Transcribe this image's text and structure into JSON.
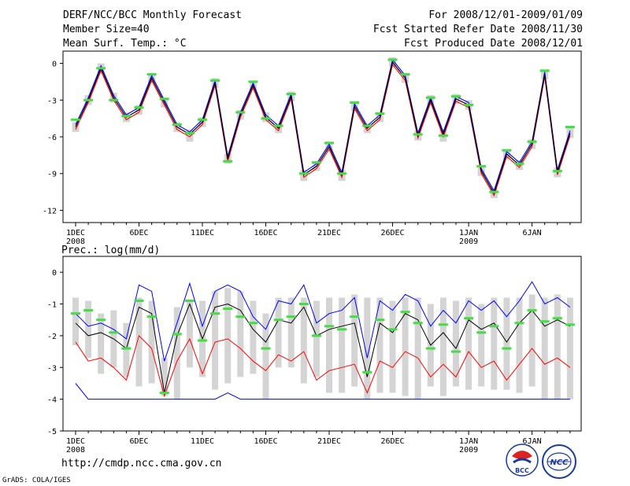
{
  "header": {
    "title": "DERF/NCC/BCC Monthly Forecast",
    "member_size": "Member Size=40",
    "variable": "Mean Surf. Temp.: °C",
    "forecast_range": "For 2008/12/01-2009/01/09",
    "started_date": "Fcst Started Refer Date 2008/11/30",
    "produced_date": "Fcst Produced Date 2008/12/01"
  },
  "footer": {
    "url": "http://cmdp.ncc.cma.gov.cn",
    "grads": "GrADS: COLA/IGES",
    "bcc_logo_text": "BCC",
    "ncc_logo_text": "NCC"
  },
  "colors": {
    "ensemble_mean": "#000000",
    "spread_upper": "#0000ff",
    "spread_lower": "#ff0000",
    "observation": "#44dd44",
    "member_range": "#d4d4d4"
  },
  "chart_data": [
    {
      "type": "line",
      "title": "Mean Surf. Temp.: °C",
      "xlabel": "",
      "ylabel": "",
      "ylim": [
        -13,
        1
      ],
      "yticks": [
        0,
        -3,
        -6,
        -9,
        -12
      ],
      "x_tick_labels": [
        "1DEC",
        "6DEC",
        "11DEC",
        "16DEC",
        "21DEC",
        "26DEC",
        "1JAN",
        "6JAN"
      ],
      "x_year_labels": [
        "2008",
        "",
        "",
        "",
        "",
        "",
        "2009",
        ""
      ],
      "x_tick_positions": [
        1,
        6,
        11,
        16,
        21,
        26,
        32,
        37
      ],
      "x": [
        1,
        2,
        3,
        4,
        5,
        6,
        7,
        8,
        9,
        10,
        11,
        12,
        13,
        14,
        15,
        16,
        17,
        18,
        19,
        20,
        21,
        22,
        23,
        24,
        25,
        26,
        27,
        28,
        29,
        30,
        31,
        32,
        33,
        34,
        35,
        36,
        37,
        38,
        39,
        40
      ],
      "series": [
        {
          "name": "ensemble mean",
          "values": [
            -5.2,
            -3.0,
            -0.4,
            -2.8,
            -4.4,
            -3.8,
            -1.2,
            -3.2,
            -5.2,
            -5.8,
            -4.8,
            -1.6,
            -7.8,
            -4.2,
            -1.8,
            -4.4,
            -5.3,
            -2.7,
            -9.1,
            -8.4,
            -6.8,
            -9.1,
            -3.5,
            -5.3,
            -4.4,
            0.1,
            -1.2,
            -5.9,
            -3.0,
            -5.8,
            -2.9,
            -3.4,
            -8.8,
            -10.6,
            -7.4,
            -8.3,
            -6.6,
            -0.9,
            -8.9,
            -5.7
          ]
        },
        {
          "name": "upper spread",
          "values": [
            -5.0,
            -2.8,
            -0.2,
            -2.6,
            -4.2,
            -3.6,
            -1.0,
            -3.0,
            -5.0,
            -5.6,
            -4.6,
            -1.4,
            -7.6,
            -4.0,
            -1.6,
            -4.2,
            -5.1,
            -2.5,
            -8.9,
            -8.2,
            -6.6,
            -8.9,
            -3.3,
            -5.1,
            -4.2,
            0.3,
            -1.0,
            -5.7,
            -2.8,
            -5.6,
            -2.7,
            -3.2,
            -8.6,
            -10.4,
            -7.2,
            -8.1,
            -6.4,
            -0.7,
            -8.7,
            -5.5
          ]
        },
        {
          "name": "lower spread",
          "values": [
            -5.4,
            -3.2,
            -0.6,
            -3.0,
            -4.6,
            -4.0,
            -1.4,
            -3.4,
            -5.4,
            -6.0,
            -5.0,
            -1.8,
            -8.0,
            -4.4,
            -2.0,
            -4.6,
            -5.5,
            -2.9,
            -9.3,
            -8.6,
            -7.0,
            -9.3,
            -3.7,
            -5.5,
            -4.6,
            -0.1,
            -1.4,
            -6.1,
            -3.2,
            -6.0,
            -3.1,
            -3.6,
            -9.0,
            -10.8,
            -7.6,
            -8.5,
            -6.8,
            -1.1,
            -9.1,
            -5.9
          ]
        },
        {
          "name": "member max",
          "values": [
            -4.8,
            -2.6,
            0.0,
            -2.4,
            -4.0,
            -3.4,
            -0.8,
            -2.8,
            -4.8,
            -5.4,
            -4.4,
            -1.2,
            -7.4,
            -3.8,
            -1.4,
            -4.0,
            -4.9,
            -2.3,
            -8.7,
            -8.0,
            -6.4,
            -8.7,
            -3.1,
            -4.9,
            -4.0,
            0.5,
            -0.8,
            -5.5,
            -2.6,
            -5.4,
            -2.5,
            -3.0,
            -8.4,
            -10.2,
            -7.0,
            -7.9,
            -6.2,
            -0.5,
            -8.5,
            -5.3
          ]
        },
        {
          "name": "member min",
          "values": [
            -5.6,
            -3.4,
            -0.8,
            -3.2,
            -4.8,
            -4.2,
            -1.6,
            -3.6,
            -5.6,
            -6.4,
            -5.2,
            -2.0,
            -8.2,
            -4.6,
            -2.2,
            -4.8,
            -5.7,
            -3.1,
            -9.6,
            -8.8,
            -7.2,
            -9.6,
            -3.9,
            -5.7,
            -4.8,
            -0.3,
            -1.6,
            -6.3,
            -3.4,
            -6.4,
            -3.3,
            -3.8,
            -9.2,
            -11.0,
            -7.8,
            -8.7,
            -7.0,
            -1.3,
            -9.3,
            -6.1
          ]
        },
        {
          "name": "observation",
          "values": [
            -4.6,
            -3.0,
            -0.4,
            -3.0,
            -4.3,
            -3.6,
            -0.9,
            -2.9,
            -5.0,
            -5.7,
            -4.6,
            -1.4,
            -8.0,
            -4.0,
            -1.5,
            -4.5,
            -5.1,
            -2.5,
            -9.0,
            -8.1,
            -6.5,
            -9.0,
            -3.2,
            -5.1,
            -4.1,
            0.3,
            -0.9,
            -5.8,
            -2.8,
            -5.9,
            -2.7,
            -3.4,
            -8.4,
            -10.5,
            -7.1,
            -8.2,
            -6.4,
            -0.6,
            -8.8,
            -5.2
          ]
        }
      ]
    },
    {
      "type": "line",
      "title": "Prec.: log(mm/d)",
      "xlabel": "",
      "ylabel": "",
      "ylim": [
        -5,
        0.5
      ],
      "yticks": [
        0,
        -1,
        -2,
        -3,
        -4,
        -5
      ],
      "x_tick_labels": [
        "1DEC",
        "6DEC",
        "11DEC",
        "16DEC",
        "21DEC",
        "26DEC",
        "1JAN",
        "6JAN"
      ],
      "x_year_labels": [
        "2008",
        "",
        "",
        "",
        "",
        "",
        "2009",
        ""
      ],
      "x_tick_positions": [
        1,
        6,
        11,
        16,
        21,
        26,
        32,
        37
      ],
      "x": [
        1,
        2,
        3,
        4,
        5,
        6,
        7,
        8,
        9,
        10,
        11,
        12,
        13,
        14,
        15,
        16,
        17,
        18,
        19,
        20,
        21,
        22,
        23,
        24,
        25,
        26,
        27,
        28,
        29,
        30,
        31,
        32,
        33,
        34,
        35,
        36,
        37,
        38,
        39,
        40
      ],
      "series": [
        {
          "name": "ensemble mean",
          "values": [
            -1.6,
            -2.0,
            -1.9,
            -2.1,
            -2.4,
            -1.1,
            -1.3,
            -3.8,
            -2.0,
            -1.0,
            -2.1,
            -1.1,
            -1.0,
            -1.2,
            -1.8,
            -2.2,
            -1.5,
            -1.6,
            -1.1,
            -2.0,
            -1.8,
            -1.7,
            -1.6,
            -3.3,
            -1.6,
            -1.9,
            -1.3,
            -1.5,
            -2.3,
            -1.9,
            -2.4,
            -1.5,
            -1.8,
            -1.6,
            -2.2,
            -1.6,
            -1.2,
            -1.7,
            -1.5,
            -1.7
          ]
        },
        {
          "name": "upper spread",
          "values": [
            -1.3,
            -1.7,
            -1.6,
            -1.8,
            -2.1,
            -0.4,
            -0.6,
            -2.8,
            -1.6,
            -0.35,
            -1.7,
            -0.6,
            -0.4,
            -0.6,
            -1.4,
            -1.8,
            -0.9,
            -1.0,
            -0.4,
            -1.6,
            -1.3,
            -1.2,
            -0.8,
            -2.7,
            -0.9,
            -1.2,
            -0.7,
            -0.9,
            -1.7,
            -1.2,
            -1.6,
            -0.9,
            -1.2,
            -0.9,
            -1.4,
            -0.9,
            -0.3,
            -1.0,
            -0.8,
            -1.1
          ]
        },
        {
          "name": "lower spread",
          "values": [
            -2.2,
            -2.8,
            -2.7,
            -3.0,
            -3.4,
            -2.0,
            -2.4,
            -3.9,
            -2.8,
            -2.1,
            -3.2,
            -2.2,
            -2.1,
            -2.4,
            -2.8,
            -3.1,
            -2.6,
            -2.8,
            -2.5,
            -3.4,
            -3.1,
            -3.0,
            -2.9,
            -3.8,
            -2.8,
            -3.0,
            -2.5,
            -2.7,
            -3.3,
            -2.9,
            -3.3,
            -2.5,
            -3.0,
            -2.8,
            -3.4,
            -2.9,
            -2.4,
            -2.9,
            -2.7,
            -3.0
          ]
        },
        {
          "name": "member min",
          "values": [
            -3.5,
            -4.0,
            -4.0,
            -4.0,
            -4.0,
            -4.0,
            -4.0,
            -4.0,
            -4.0,
            -4.0,
            -4.0,
            -4.0,
            -3.8,
            -4.0,
            -4.0,
            -4.0,
            -4.0,
            -4.0,
            -4.0,
            -4.0,
            -4.0,
            -4.0,
            -4.0,
            -4.0,
            -4.0,
            -4.0,
            -4.0,
            -4.0,
            -4.0,
            -4.0,
            -4.0,
            -4.0,
            -4.0,
            -4.0,
            -4.0,
            -4.0,
            -4.0,
            -4.0,
            -4.0,
            -4.0
          ]
        },
        {
          "name": "member range top",
          "values": [
            -0.8,
            -0.9,
            -1.3,
            -1.2,
            -1.6,
            -0.8,
            -0.9,
            -2.7,
            -1.1,
            -0.9,
            -0.9,
            -0.6,
            -0.5,
            -0.6,
            -0.9,
            -1.3,
            -0.8,
            -0.8,
            -0.8,
            -0.9,
            -0.8,
            -0.8,
            -0.7,
            -0.8,
            -0.8,
            -0.9,
            -0.8,
            -0.8,
            -1.0,
            -0.8,
            -0.9,
            -0.8,
            -1.0,
            -0.8,
            -0.8,
            -0.8,
            -0.7,
            -0.8,
            -0.7,
            -0.8
          ]
        },
        {
          "name": "member range bottom",
          "values": [
            -2.3,
            -2.7,
            -3.2,
            -3.0,
            -3.3,
            -3.6,
            -3.5,
            -3.9,
            -4.0,
            -3.0,
            -3.3,
            -3.7,
            -3.5,
            -3.3,
            -3.2,
            -4.0,
            -3.0,
            -3.0,
            -3.5,
            -3.3,
            -3.8,
            -3.8,
            -3.6,
            -4.0,
            -3.8,
            -3.8,
            -3.9,
            -4.0,
            -3.6,
            -3.9,
            -3.6,
            -3.7,
            -3.6,
            -3.7,
            -3.7,
            -3.8,
            -3.6,
            -4.0,
            -4.0,
            -4.0
          ]
        },
        {
          "name": "observation",
          "values": [
            -1.3,
            -1.2,
            -1.5,
            -1.9,
            -2.4,
            -0.9,
            -1.4,
            -3.8,
            -1.95,
            -0.9,
            -2.15,
            -1.3,
            -1.15,
            -1.4,
            -1.6,
            -2.4,
            -1.5,
            -1.4,
            -1.0,
            -2.0,
            -1.7,
            -1.8,
            -1.4,
            -3.15,
            -1.5,
            -1.8,
            -1.25,
            -1.6,
            -2.4,
            -1.65,
            -2.5,
            -1.45,
            -1.9,
            -1.7,
            -2.4,
            -1.6,
            -1.2,
            -1.55,
            -1.45,
            -1.65
          ]
        }
      ]
    }
  ]
}
